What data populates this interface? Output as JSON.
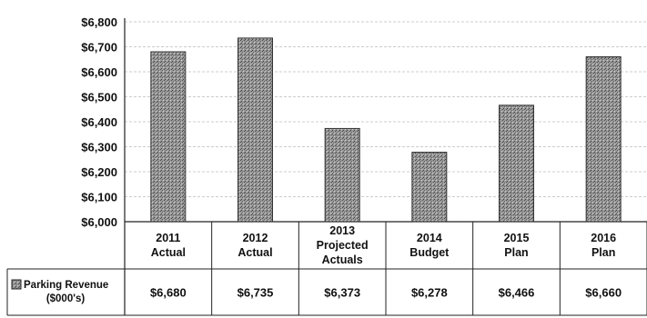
{
  "chart_data": {
    "type": "bar",
    "categories": [
      [
        "2011",
        "Actual"
      ],
      [
        "2012",
        "Actual"
      ],
      [
        "2013",
        "Projected",
        "Actuals"
      ],
      [
        "2014",
        "Budget"
      ],
      [
        "2015",
        "Plan"
      ],
      [
        "2016",
        "Plan"
      ]
    ],
    "series": [
      {
        "name": "Parking Revenue ($000's)",
        "name_lines": [
          "Parking Revenue",
          "($000's)"
        ],
        "values": [
          6680,
          6735,
          6373,
          6278,
          6466,
          6660
        ],
        "value_labels": [
          "$6,680",
          "$6,735",
          "$6,373",
          "$6,278",
          "$6,466",
          "$6,660"
        ]
      }
    ],
    "ylim": [
      6000,
      6800
    ],
    "yticks": [
      6000,
      6100,
      6200,
      6300,
      6400,
      6500,
      6600,
      6700,
      6800
    ],
    "ytick_labels": [
      "$6,000",
      "$6,100",
      "$6,200",
      "$6,300",
      "$6,400",
      "$6,500",
      "$6,600",
      "$6,700",
      "$6,800"
    ],
    "grid": true,
    "legend": "data-table-left",
    "colors": {
      "bar": "#8f8f8f",
      "bar_border": "#333333",
      "grid": "#cccccc",
      "axis": "#222222"
    }
  }
}
